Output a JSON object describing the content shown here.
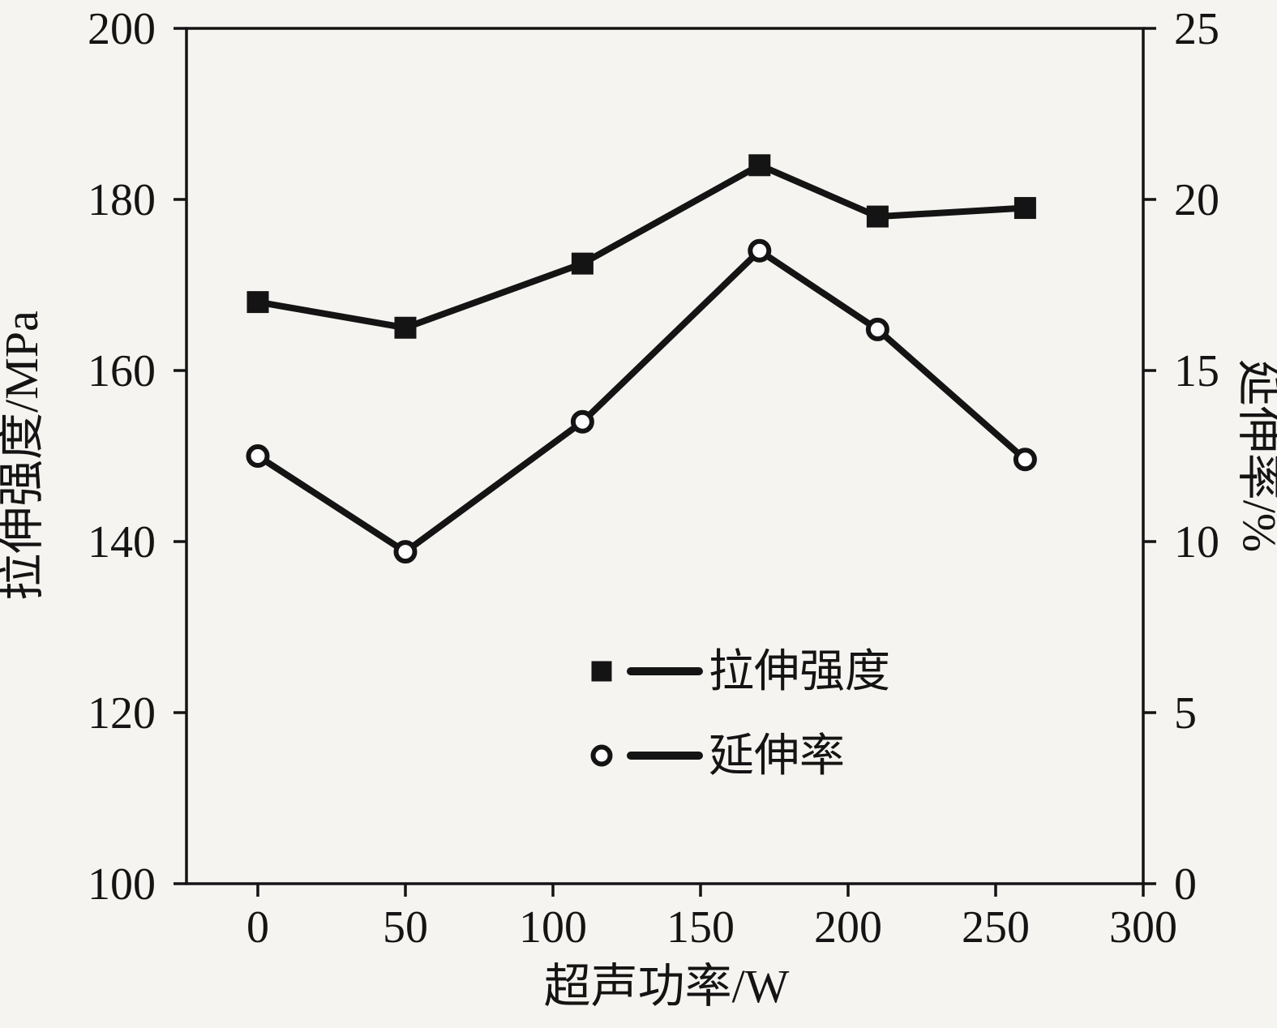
{
  "chart_data": {
    "type": "line",
    "title": "",
    "xlabel": "超声功率/W",
    "ylabel_left": "拉伸强度/MPa",
    "ylabel_right": "延伸率/%",
    "x": [
      0,
      50,
      110,
      170,
      210,
      260
    ],
    "series": [
      {
        "key": "tensile-strength",
        "name": "拉伸强度",
        "axis": "left",
        "marker": "filled-square",
        "values": [
          168,
          165,
          172.5,
          184,
          178,
          179
        ]
      },
      {
        "key": "elongation",
        "name": "延伸率",
        "axis": "right",
        "marker": "open-circle",
        "values": [
          12.5,
          9.7,
          13.5,
          18.5,
          16.2,
          12.4
        ]
      }
    ],
    "x_axis": {
      "min": 0,
      "max": 300,
      "ticks": [
        0,
        50,
        100,
        150,
        200,
        250,
        300
      ]
    },
    "left_axis": {
      "min": 100,
      "max": 200,
      "ticks": [
        100,
        120,
        140,
        160,
        180,
        200
      ]
    },
    "right_axis": {
      "min": 0,
      "max": 25,
      "ticks": [
        0,
        5,
        10,
        15,
        20,
        25
      ]
    },
    "legend": {
      "position": "inside-bottom-center",
      "entries": [
        "拉伸强度",
        "延伸率"
      ]
    },
    "grid": "off",
    "colors": {
      "line": "#141414",
      "background": "#f5f4f1",
      "marker_fill": "#ffffff"
    }
  }
}
